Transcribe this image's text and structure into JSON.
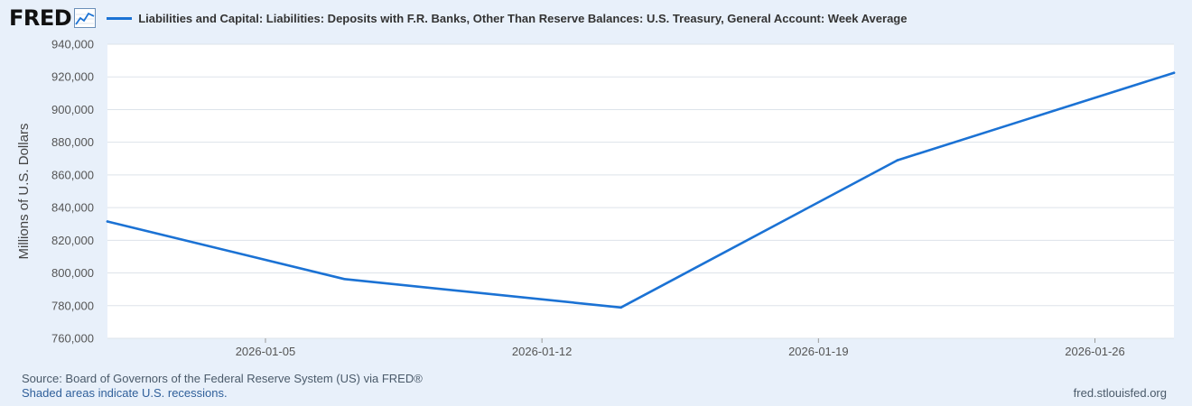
{
  "header": {
    "logo_text": "FRED",
    "logo_icon": "line-chart-icon",
    "legend_label": "Liabilities and Capital: Liabilities: Deposits with F.R. Banks, Other Than Reserve Balances: U.S. Treasury, General Account: Week Average"
  },
  "footer": {
    "source": "Source: Board of Governors of the Federal Reserve System (US) via FRED®",
    "recessions": "Shaded areas indicate U.S. recessions.",
    "site": "fred.stlouisfed.org"
  },
  "colors": {
    "line": "#1b72d4",
    "plot_bg": "#ffffff",
    "page_bg": "#e8f0fa",
    "grid": "#dde3ea"
  },
  "chart_data": {
    "type": "line",
    "title": "",
    "xlabel": "",
    "ylabel": "Millions of U.S. Dollars",
    "ylim": [
      760000,
      940000
    ],
    "yticks": [
      760000,
      780000,
      800000,
      820000,
      840000,
      860000,
      880000,
      900000,
      920000,
      940000
    ],
    "ytick_labels": [
      "760,000",
      "780,000",
      "800,000",
      "820,000",
      "840,000",
      "860,000",
      "880,000",
      "900,000",
      "920,000",
      "940,000"
    ],
    "xlim": [
      "2026-01-01",
      "2026-01-28"
    ],
    "xticks": [
      "2026-01-05",
      "2026-01-12",
      "2026-01-19",
      "2026-01-26"
    ],
    "grid": true,
    "series": [
      {
        "name": "Liabilities and Capital: Liabilities: Deposits with F.R. Banks, Other Than Reserve Balances: U.S. Treasury, General Account: Week Average",
        "x": [
          "2026-01-01",
          "2026-01-07",
          "2026-01-14",
          "2026-01-21",
          "2026-01-28"
        ],
        "y": [
          831500,
          796300,
          778900,
          869000,
          922500
        ]
      }
    ]
  }
}
